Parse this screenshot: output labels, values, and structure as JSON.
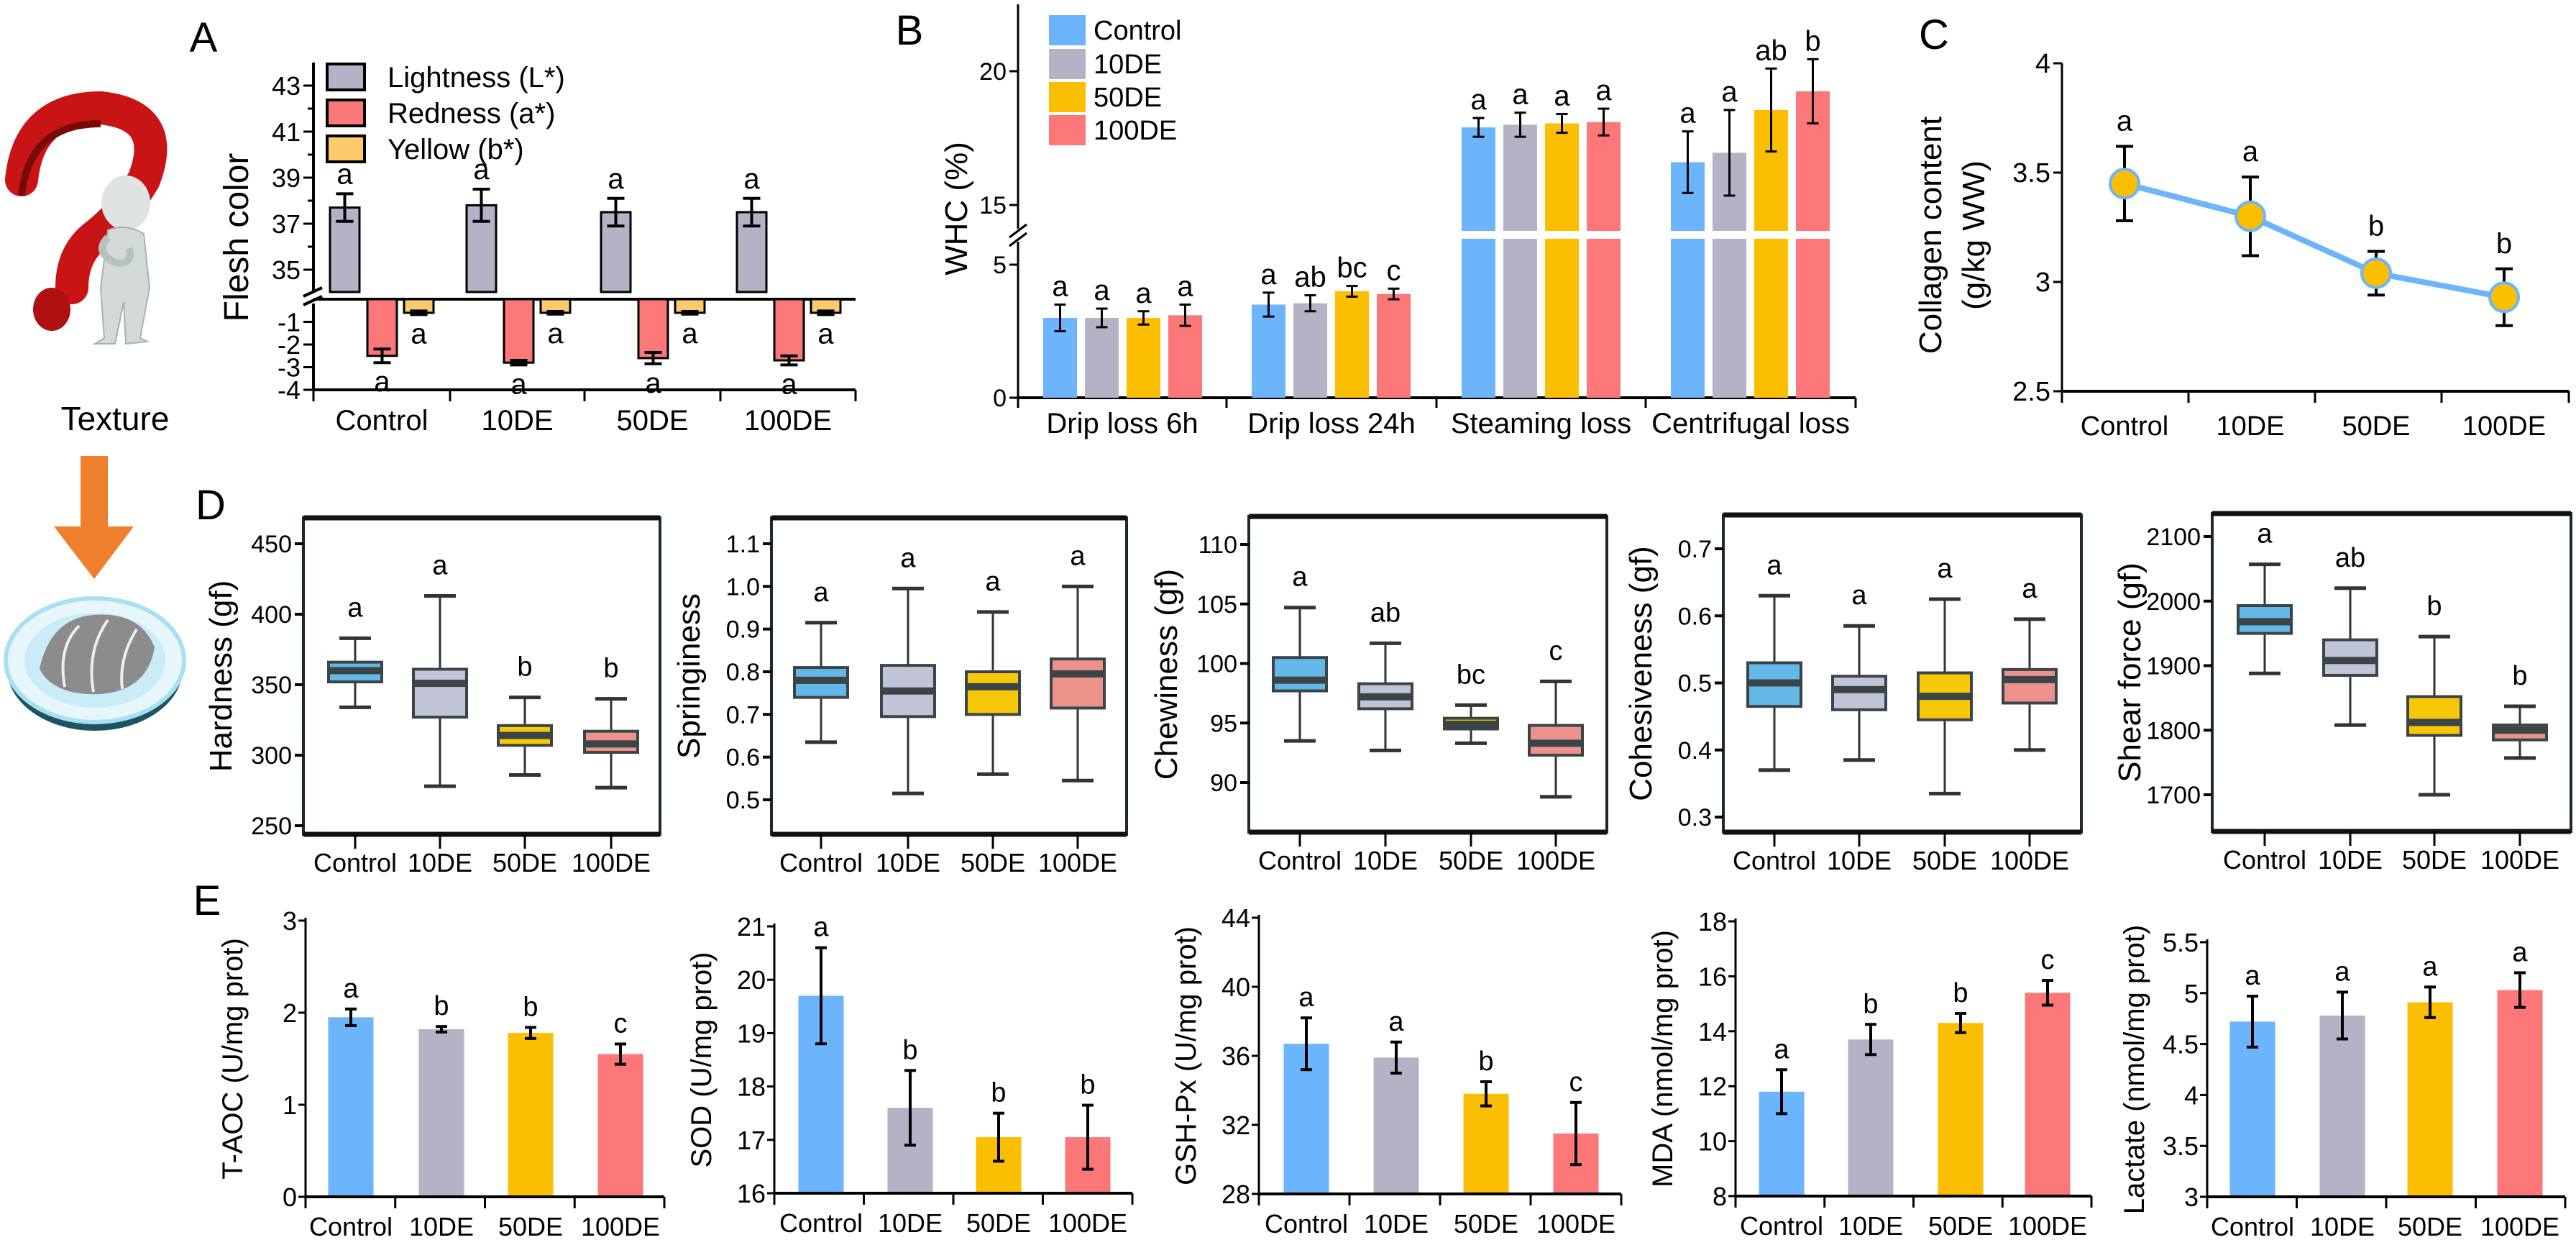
{
  "illustration": {
    "caption": "Texture"
  },
  "chart_data": [
    {
      "id": "A",
      "panel_label": "A",
      "type": "bar",
      "ylabel": "Flesh color",
      "categories": [
        "Control",
        "10DE",
        "50DE",
        "100DE"
      ],
      "y_ticks": [
        "43",
        "41",
        "39",
        "37",
        "35",
        "-1",
        "-2",
        "-3",
        "-4"
      ],
      "axis_break": [
        0,
        34
      ],
      "legend": "top-left",
      "series": [
        {
          "name": "Lightness (L*)",
          "color": "#b4b3c6",
          "values": [
            37.7,
            37.8,
            37.5,
            37.5
          ],
          "errors": [
            0.6,
            0.7,
            0.6,
            0.6
          ],
          "letters": [
            "a",
            "a",
            "a",
            "a"
          ]
        },
        {
          "name": "Redness (a*)",
          "color": "#fc7878",
          "values": [
            -2.5,
            -2.8,
            -2.6,
            -2.7
          ],
          "errors": [
            0.3,
            0.1,
            0.25,
            0.2
          ],
          "letters": [
            "a",
            "a",
            "a",
            "a"
          ]
        },
        {
          "name": "Yellow (b*)",
          "color": "#fcc96b",
          "values": [
            -0.6,
            -0.6,
            -0.6,
            -0.6
          ],
          "errors": [
            0.08,
            0.06,
            0.06,
            0.08
          ],
          "letters": [
            "a",
            "a",
            "a",
            "a"
          ]
        }
      ]
    },
    {
      "id": "B",
      "panel_label": "B",
      "type": "bar",
      "ylabel": "WHC (%)",
      "categories": [
        "Drip loss 6h",
        "Drip loss 24h",
        "Steaming loss",
        "Centrifugal loss"
      ],
      "y_ticks": [
        "0",
        "5",
        "15",
        "20"
      ],
      "axis_break": [
        6,
        14
      ],
      "legend": "top-left",
      "series": [
        {
          "name": "Control",
          "color": "#6cb4fb",
          "values": [
            3.0,
            3.5,
            17.9,
            16.6
          ],
          "errors": [
            0.5,
            0.45,
            0.35,
            1.15
          ],
          "letters": [
            "a",
            "a",
            "a",
            "a"
          ]
        },
        {
          "name": "10DE",
          "color": "#b4b3c6",
          "values": [
            3.0,
            3.55,
            18.0,
            16.95
          ],
          "errors": [
            0.35,
            0.3,
            0.45,
            1.6
          ],
          "letters": [
            "a",
            "ab",
            "a",
            "a"
          ]
        },
        {
          "name": "50DE",
          "color": "#fcbe00",
          "values": [
            3.0,
            4.0,
            18.05,
            18.55
          ],
          "errors": [
            0.25,
            0.2,
            0.35,
            1.55
          ],
          "letters": [
            "a",
            "bc",
            "a",
            "ab"
          ]
        },
        {
          "name": "100DE",
          "color": "#fc7878",
          "values": [
            3.1,
            3.9,
            18.1,
            19.25
          ],
          "errors": [
            0.4,
            0.2,
            0.5,
            1.2
          ],
          "letters": [
            "a",
            "c",
            "a",
            "b"
          ]
        }
      ]
    },
    {
      "id": "C",
      "panel_label": "C",
      "type": "line",
      "ylabel": [
        "Collagen content",
        "(g/kg WW)"
      ],
      "categories": [
        "Control",
        "10DE",
        "50DE",
        "100DE"
      ],
      "y_ticks": [
        "4",
        "3.5",
        "3",
        "2.5"
      ],
      "ylim": [
        2.5,
        4
      ],
      "values": [
        3.45,
        3.3,
        3.04,
        2.93
      ],
      "errors": [
        0.17,
        0.18,
        0.1,
        0.13
      ],
      "letters": [
        "a",
        "a",
        "b",
        "b"
      ],
      "line_color": "#6cb4fb",
      "marker_color": "#fcbe00"
    },
    {
      "id": "D1",
      "panel_label": "D",
      "type": "box",
      "ylabel": "Hardness  (gf)",
      "categories": [
        "Control",
        "10DE",
        "50DE",
        "100DE"
      ],
      "y_ticks": [
        "450",
        "400",
        "350",
        "300",
        "250"
      ],
      "colors": [
        "#63b8e8",
        "#c0c4d6",
        "#f7c808",
        "#ed928a"
      ],
      "stats": [
        [
          334,
          352,
          360,
          366,
          383
        ],
        [
          278,
          327,
          351,
          361,
          413
        ],
        [
          286,
          307,
          314,
          321,
          341
        ],
        [
          277,
          302,
          308,
          317,
          340
        ]
      ],
      "stats_order": "min,q1,median,q3,max",
      "letters": [
        "a",
        "a",
        "b",
        "b"
      ]
    },
    {
      "id": "D2",
      "type": "box",
      "ylabel": "Springiness",
      "categories": [
        "Control",
        "10DE",
        "50DE",
        "100DE"
      ],
      "y_ticks": [
        "1.1",
        "1.0",
        "0.9",
        "0.8",
        "0.7",
        "0.6",
        "0.5"
      ],
      "colors": [
        "#63b8e8",
        "#c0c4d6",
        "#f7c808",
        "#ed928a"
      ],
      "stats": [
        [
          0.635,
          0.74,
          0.78,
          0.81,
          0.915
        ],
        [
          0.515,
          0.695,
          0.755,
          0.815,
          0.995
        ],
        [
          0.56,
          0.7,
          0.765,
          0.8,
          0.94
        ],
        [
          0.545,
          0.715,
          0.795,
          0.83,
          1.0
        ]
      ],
      "stats_order": "min,q1,median,q3,max",
      "letters": [
        "a",
        "a",
        "a",
        "a"
      ]
    },
    {
      "id": "D3",
      "type": "box",
      "ylabel": "Chewiness  (gf)",
      "categories": [
        "Control",
        "10DE",
        "50DE",
        "100DE"
      ],
      "y_ticks": [
        "110",
        "105",
        "100",
        "95",
        "90"
      ],
      "colors": [
        "#63b8e8",
        "#c0c4d6",
        "#f7c808",
        "#ed928a"
      ],
      "stats": [
        [
          93.5,
          97.7,
          98.6,
          100.5,
          104.7
        ],
        [
          92.7,
          96.2,
          97.2,
          98.3,
          101.7
        ],
        [
          93.3,
          94.5,
          94.9,
          95.4,
          96.5
        ],
        [
          88.8,
          92.3,
          93.3,
          94.8,
          98.5
        ]
      ],
      "stats_order": "min,q1,median,q3,max",
      "letters": [
        "a",
        "ab",
        "bc",
        "c"
      ]
    },
    {
      "id": "D4",
      "type": "box",
      "ylabel": "Cohesiveness  (gf)",
      "categories": [
        "Control",
        "10DE",
        "50DE",
        "100DE"
      ],
      "y_ticks": [
        "0.7",
        "0.6",
        "0.5",
        "0.4",
        "0.3"
      ],
      "colors": [
        "#63b8e8",
        "#c0c4d6",
        "#f7c808",
        "#ed928a"
      ],
      "stats": [
        [
          0.37,
          0.465,
          0.5,
          0.53,
          0.63
        ],
        [
          0.385,
          0.46,
          0.49,
          0.51,
          0.585
        ],
        [
          0.335,
          0.445,
          0.48,
          0.515,
          0.625
        ],
        [
          0.4,
          0.47,
          0.505,
          0.52,
          0.595
        ]
      ],
      "stats_order": "min,q1,median,q3,max",
      "letters": [
        "a",
        "a",
        "a",
        "a"
      ]
    },
    {
      "id": "D5",
      "type": "box",
      "ylabel": "Shear  force  (gf)",
      "categories": [
        "Control",
        "10DE",
        "50DE",
        "100DE"
      ],
      "y_ticks": [
        "2100",
        "2000",
        "1900",
        "1800",
        "1700"
      ],
      "colors": [
        "#63b8e8",
        "#c0c4d6",
        "#f7c808",
        "#ed928a"
      ],
      "stats": [
        [
          1888,
          1950,
          1968,
          1993,
          2057
        ],
        [
          1808,
          1885,
          1908,
          1940,
          2020
        ],
        [
          1700,
          1792,
          1812,
          1852,
          1945
        ],
        [
          1757,
          1785,
          1800,
          1808,
          1837
        ]
      ],
      "stats_order": "min,q1,median,q3,max",
      "letters": [
        "a",
        "ab",
        "b",
        "b"
      ]
    },
    {
      "id": "E1",
      "panel_label": "E",
      "type": "bar",
      "ylabel": "T-AOC (U/mg prot)",
      "categories": [
        "Control",
        "10DE",
        "50DE",
        "100DE"
      ],
      "y_ticks": [
        "0",
        "1",
        "2",
        "3"
      ],
      "colors": [
        "#6cb4fb",
        "#b4b3c6",
        "#fcbe00",
        "#fc7878"
      ],
      "values": [
        1.95,
        1.82,
        1.78,
        1.55
      ],
      "errors": [
        0.09,
        0.03,
        0.06,
        0.11
      ],
      "letters": [
        "a",
        "b",
        "b",
        "c"
      ]
    },
    {
      "id": "E2",
      "type": "bar",
      "ylabel": "SOD (U/mg prot)",
      "categories": [
        "Control",
        "10DE",
        "50DE",
        "100DE"
      ],
      "y_ticks": [
        "16",
        "17",
        "18",
        "19",
        "20",
        "21"
      ],
      "colors": [
        "#6cb4fb",
        "#b4b3c6",
        "#fcbe00",
        "#fc7878"
      ],
      "values": [
        19.7,
        17.6,
        17.05,
        17.05
      ],
      "errors": [
        0.9,
        0.7,
        0.45,
        0.6
      ],
      "letters": [
        "a",
        "b",
        "b",
        "b"
      ]
    },
    {
      "id": "E3",
      "type": "bar",
      "ylabel": "GSH-Px (U/mg prot)",
      "categories": [
        "Control",
        "10DE",
        "50DE",
        "100DE"
      ],
      "y_ticks": [
        "28",
        "32",
        "36",
        "40",
        "44"
      ],
      "colors": [
        "#6cb4fb",
        "#b4b3c6",
        "#fcbe00",
        "#fc7878"
      ],
      "values": [
        36.7,
        35.9,
        33.8,
        31.5
      ],
      "errors": [
        1.5,
        0.9,
        0.7,
        1.8
      ],
      "letters": [
        "a",
        "a",
        "b",
        "c"
      ]
    },
    {
      "id": "E4",
      "type": "bar",
      "ylabel": "MDA (nmol/mg prot)",
      "categories": [
        "Control",
        "10DE",
        "50DE",
        "100DE"
      ],
      "y_ticks": [
        "8",
        "10",
        "12",
        "14",
        "16",
        "18"
      ],
      "colors": [
        "#6cb4fb",
        "#b4b3c6",
        "#fcbe00",
        "#fc7878"
      ],
      "values": [
        11.8,
        13.7,
        14.3,
        15.4
      ],
      "errors": [
        0.8,
        0.55,
        0.35,
        0.45
      ],
      "letters": [
        "a",
        "b",
        "b",
        "c"
      ]
    },
    {
      "id": "E5",
      "type": "bar",
      "ylabel": "Lactate (nmol/mg prot)",
      "categories": [
        "Control",
        "10DE",
        "50DE",
        "100DE"
      ],
      "y_ticks": [
        "3",
        "3.5",
        "4",
        "4.5",
        "5",
        "5.5"
      ],
      "colors": [
        "#6cb4fb",
        "#b4b3c6",
        "#fcbe00",
        "#fc7878"
      ],
      "values": [
        4.72,
        4.78,
        4.91,
        5.03
      ],
      "errors": [
        0.25,
        0.23,
        0.15,
        0.17
      ],
      "letters": [
        "a",
        "a",
        "a",
        "a"
      ]
    }
  ]
}
